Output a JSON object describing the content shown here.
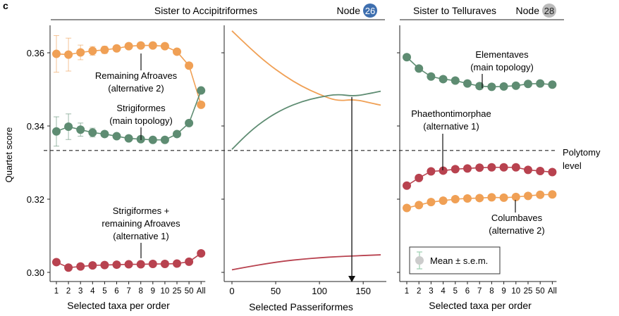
{
  "panel_letter": "c",
  "headers": {
    "left": "Sister to Accipitriformes",
    "left_node_label": "Node",
    "left_node_number": "26",
    "right": "Sister to Telluraves",
    "right_node_label": "Node",
    "right_node_number": "28"
  },
  "colors": {
    "orange": "#F0A055",
    "green": "#5E8C72",
    "red": "#B8424F",
    "node26_badge": "#3E6FAF",
    "node28_badge": "#BBBBBB",
    "legend_marker": "#CCCCCC",
    "legend_errorbar": "#9CCFB0"
  },
  "legend": {
    "label": "Mean ± s.e.m."
  },
  "reference_line": {
    "label_line1": "Polytomy",
    "label_line2": "level",
    "value": 0.3333
  },
  "chart_data": [
    {
      "type": "line",
      "id": "left",
      "ylabel": "Quartet score",
      "xlabel": "Selected taxa per order",
      "ylim": [
        0.2975,
        0.3675
      ],
      "yticks": [
        0.3,
        0.32,
        0.34,
        0.36
      ],
      "ytick_labels": [
        "0.30",
        "0.32",
        "0.34",
        "0.36"
      ],
      "categories": [
        "1",
        "2",
        "3",
        "4",
        "5",
        "6",
        "7",
        "8",
        "9",
        "10",
        "25",
        "50",
        "All"
      ],
      "series": [
        {
          "key": "orange",
          "values": [
            0.3597,
            0.3595,
            0.3601,
            0.3605,
            0.3608,
            0.3612,
            0.3618,
            0.362,
            0.362,
            0.3618,
            0.3603,
            0.3565,
            0.3458
          ],
          "err": [
            0.005,
            0.0045,
            0.002,
            0.0012,
            0.001,
            0.0008,
            0.0006,
            0.0005,
            0.0005,
            0.0004,
            0.0003,
            0.0002,
            0
          ]
        },
        {
          "key": "green",
          "values": [
            0.3385,
            0.3398,
            0.339,
            0.3382,
            0.3378,
            0.3372,
            0.3366,
            0.3364,
            0.3362,
            0.3362,
            0.3378,
            0.3408,
            0.3497
          ],
          "err": [
            0.004,
            0.0035,
            0.0018,
            0.0012,
            0.0008,
            0.0006,
            0.0005,
            0.0004,
            0.0004,
            0.0003,
            0.0003,
            0.0002,
            0
          ]
        },
        {
          "key": "red",
          "values": [
            0.3028,
            0.3013,
            0.3016,
            0.3019,
            0.302,
            0.3021,
            0.3022,
            0.3022,
            0.3023,
            0.3023,
            0.3024,
            0.3029,
            0.3052
          ],
          "err": [
            0.0008,
            0.0006,
            0.0004,
            0.0003,
            0.0002,
            0.0002,
            0.0002,
            0.0002,
            0.0002,
            0.0001,
            0.0001,
            0.0001,
            0
          ]
        }
      ],
      "annotations": [
        {
          "line1": "Remaining Afroaves",
          "line2": "(alternative 2)"
        },
        {
          "line1": "Strigiformes",
          "line2": "(main topology)"
        },
        {
          "line1": "Strigiformes +",
          "line2": "remaining Afroaves",
          "line3": "(alternative 1)"
        }
      ]
    },
    {
      "type": "line",
      "id": "middle",
      "xlabel": "Selected Passeriformes",
      "xlim": [
        -8,
        172
      ],
      "xticks": [
        0,
        50,
        100,
        150
      ],
      "xtick_labels": [
        "0",
        "50",
        "100",
        "150"
      ],
      "ylim": [
        0.2975,
        0.3675
      ],
      "series": [
        {
          "key": "orange",
          "x": [
            0,
            20,
            40,
            60,
            80,
            100,
            120,
            140,
            160,
            170
          ],
          "values": [
            0.366,
            0.3614,
            0.3572,
            0.3537,
            0.3508,
            0.3486,
            0.3468,
            0.3473,
            0.3462,
            0.3457
          ]
        },
        {
          "key": "green",
          "x": [
            0,
            20,
            40,
            60,
            80,
            100,
            120,
            140,
            160,
            170
          ],
          "values": [
            0.3336,
            0.3384,
            0.3421,
            0.3448,
            0.3467,
            0.3479,
            0.3487,
            0.3481,
            0.349,
            0.3495
          ]
        },
        {
          "key": "red",
          "x": [
            0,
            20,
            40,
            60,
            80,
            100,
            120,
            140,
            160,
            170
          ],
          "values": [
            0.3007,
            0.3016,
            0.3024,
            0.3031,
            0.3036,
            0.304,
            0.3043,
            0.3045,
            0.3047,
            0.3048
          ]
        }
      ],
      "arrow": {
        "x": 137,
        "from_y": 0.3479,
        "to_y": 0.2975
      }
    },
    {
      "type": "line",
      "id": "right",
      "xlabel": "Selected taxa per order",
      "ylim": [
        0.2975,
        0.3675
      ],
      "categories": [
        "1",
        "2",
        "3",
        "4",
        "5",
        "6",
        "7",
        "8",
        "9",
        "10",
        "25",
        "50",
        "All"
      ],
      "series": [
        {
          "key": "green",
          "values": [
            0.3588,
            0.3557,
            0.3535,
            0.3528,
            0.3524,
            0.3516,
            0.3509,
            0.3507,
            0.3508,
            0.351,
            0.3515,
            0.3516,
            0.3513
          ]
        },
        {
          "key": "red",
          "values": [
            0.3237,
            0.3258,
            0.3276,
            0.3278,
            0.3282,
            0.3284,
            0.3286,
            0.3287,
            0.3287,
            0.3287,
            0.328,
            0.3277,
            0.3274
          ]
        },
        {
          "key": "orange",
          "values": [
            0.3176,
            0.3184,
            0.3192,
            0.3196,
            0.32,
            0.3202,
            0.3203,
            0.3205,
            0.3204,
            0.3206,
            0.3209,
            0.3212,
            0.3213
          ]
        }
      ],
      "annotations": [
        {
          "line1": "Elementaves",
          "line2": "(main topology)"
        },
        {
          "line1": "Phaethontimorphae",
          "line2": "(alternative 1)"
        },
        {
          "line1": "Columbaves",
          "line2": "(alternative 2)"
        }
      ]
    }
  ]
}
